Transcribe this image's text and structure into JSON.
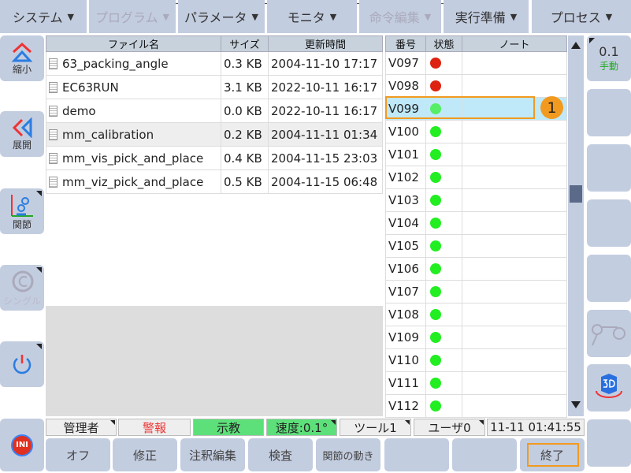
{
  "menu": [
    {
      "label": "システム",
      "enabled": true
    },
    {
      "label": "プログラム",
      "enabled": false
    },
    {
      "label": "パラメータ",
      "enabled": true
    },
    {
      "label": "モニタ",
      "enabled": true
    },
    {
      "label": "命令編集",
      "enabled": false
    },
    {
      "label": "実行準備",
      "enabled": true
    },
    {
      "label": "プロセス",
      "enabled": true
    }
  ],
  "left": {
    "shrink": "縮小",
    "expand": "展開",
    "joint": "関節",
    "single": "シングル",
    "ini": "INI"
  },
  "right": {
    "speed": "0.1",
    "mode": "手動"
  },
  "files": {
    "headers": [
      "ファイル名",
      "サイズ",
      "更新時間"
    ],
    "rows": [
      [
        "63_packing_angle",
        "0.3 KB",
        "2004-11-10 17:17"
      ],
      [
        "EC63RUN",
        "3.1 KB",
        "2022-10-11 16:17"
      ],
      [
        "demo",
        "0.0 KB",
        "2022-10-11 16:17"
      ],
      [
        "mm_calibration",
        "0.2 KB",
        "2004-11-11 01:34"
      ],
      [
        "mm_vis_pick_and_place",
        "0.4 KB",
        "2004-11-15 23:03"
      ],
      [
        "mm_viz_pick_and_place",
        "0.5 KB",
        "2004-11-15 06:48"
      ]
    ],
    "selected": 3
  },
  "vars": {
    "headers": [
      "番号",
      "状態",
      "ノート"
    ],
    "rows": [
      {
        "id": "V097",
        "state": "red"
      },
      {
        "id": "V098",
        "state": "red"
      },
      {
        "id": "V099",
        "state": "green"
      },
      {
        "id": "V100",
        "state": "green"
      },
      {
        "id": "V101",
        "state": "green"
      },
      {
        "id": "V102",
        "state": "green"
      },
      {
        "id": "V103",
        "state": "green"
      },
      {
        "id": "V104",
        "state": "green"
      },
      {
        "id": "V105",
        "state": "green"
      },
      {
        "id": "V106",
        "state": "green"
      },
      {
        "id": "V107",
        "state": "green"
      },
      {
        "id": "V108",
        "state": "green"
      },
      {
        "id": "V109",
        "state": "green"
      },
      {
        "id": "V110",
        "state": "green"
      },
      {
        "id": "V111",
        "state": "green"
      },
      {
        "id": "V112",
        "state": "green"
      }
    ],
    "selected": 2
  },
  "callout": "1",
  "status": {
    "user": "管理者",
    "alarm": "警報",
    "teach": "示教",
    "speed": "速度:0.1°",
    "tool": "ツール1",
    "userframe": "ユーザ0",
    "time": "11-11 01:41:55"
  },
  "bottom": [
    "オフ",
    "修正",
    "注釈編集",
    "検査",
    "関節の動き",
    "",
    "",
    "終了"
  ],
  "colors": {
    "panel": "#c3cde0",
    "accent": "#f29a1f",
    "red": "#dd2211",
    "green": "#22ee22",
    "teach": "#5de07a"
  }
}
